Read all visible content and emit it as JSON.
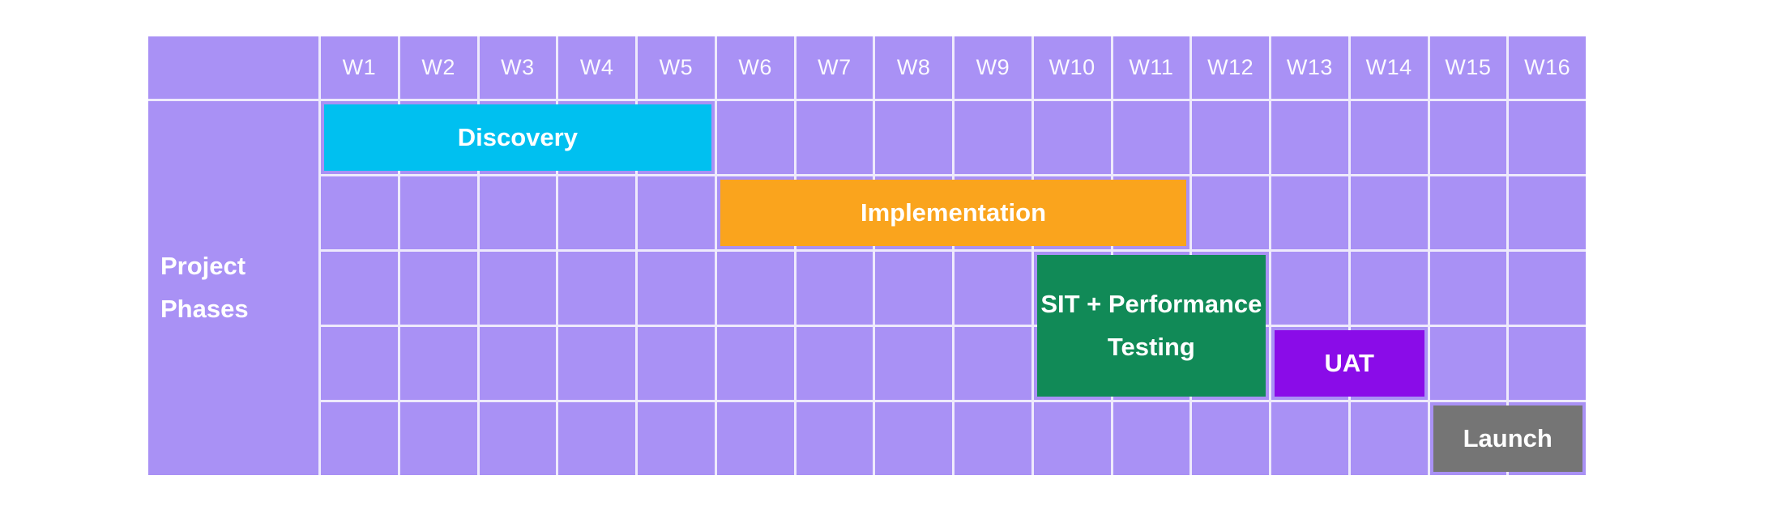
{
  "page": {
    "background_color": "#FFFFFF"
  },
  "chart_data": {
    "type": "bar",
    "subtype": "gantt",
    "title": "",
    "row_header": "Project Phases",
    "x_categories": [
      "W1",
      "W2",
      "W3",
      "W4",
      "W5",
      "W6",
      "W7",
      "W8",
      "W9",
      "W10",
      "W11",
      "W12",
      "W13",
      "W14",
      "W15",
      "W16"
    ],
    "body_rows": 5,
    "grid": true,
    "legend_position": "none",
    "series": [
      {
        "name": "Discovery",
        "start_week": 1,
        "end_week": 5,
        "row_start": 1,
        "row_end": 1,
        "color": "#00C0F0"
      },
      {
        "name": "Implementation",
        "start_week": 6,
        "end_week": 11,
        "row_start": 2,
        "row_end": 2,
        "color": "#FAA41D"
      },
      {
        "name": "SIT + Performance Testing",
        "start_week": 10,
        "end_week": 12,
        "row_start": 3,
        "row_end": 4,
        "color": "#118A57"
      },
      {
        "name": "UAT",
        "start_week": 13,
        "end_week": 14,
        "row_start": 4,
        "row_end": 4,
        "color": "#8A0CE8"
      },
      {
        "name": "Launch",
        "start_week": 15,
        "end_week": 16,
        "row_start": 5,
        "row_end": 5,
        "color": "#757575"
      }
    ],
    "colors": {
      "cell_background": "#A991F5",
      "grid_line": "#EEEAFC",
      "header_text": "#FFFFFF",
      "bar_text": "#FFFFFF"
    }
  }
}
